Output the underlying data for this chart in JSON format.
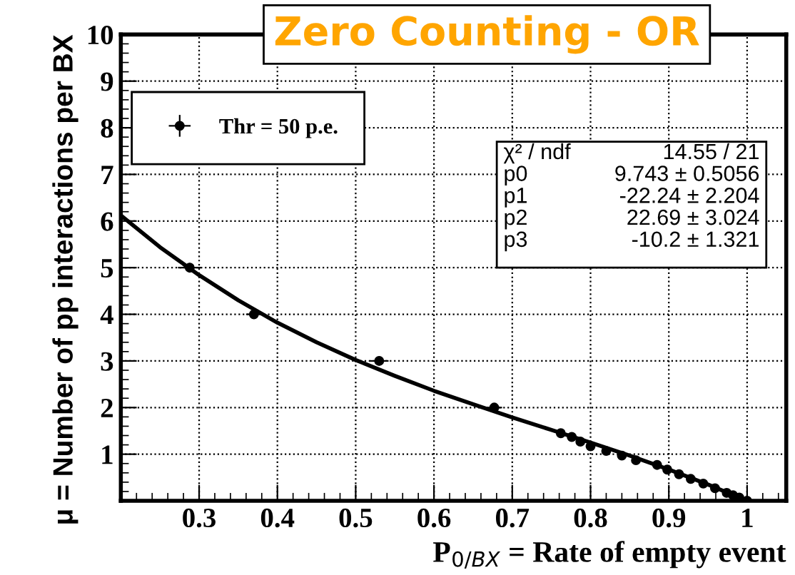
{
  "chart_data": {
    "type": "scatter",
    "title": "Zero Counting - OR",
    "xlabel": "P$_{0/BX}$ = Rate of empty event",
    "ylabel": "μ = Number of pp interactions per BX",
    "series": [
      {
        "name": "Thr = 50 p.e.",
        "color": "#000000",
        "marker": "circle",
        "x": [
          0.288,
          0.37,
          0.53,
          0.677,
          0.762,
          0.776,
          0.787,
          0.8,
          0.82,
          0.84,
          0.858,
          0.885,
          0.898,
          0.913,
          0.928,
          0.944,
          0.959,
          0.974,
          0.982,
          0.99,
          1.0
        ],
        "values": [
          5.0,
          4.0,
          3.0,
          2.0,
          1.45,
          1.37,
          1.27,
          1.17,
          1.07,
          0.97,
          0.87,
          0.77,
          0.67,
          0.57,
          0.47,
          0.37,
          0.27,
          0.17,
          0.12,
          0.07,
          0.0
        ],
        "xerrors": [
          0.015,
          0.01,
          0.012,
          0.01,
          null,
          null,
          null,
          null,
          null,
          null,
          null,
          null,
          null,
          null,
          null,
          null,
          null,
          null,
          null,
          null,
          null
        ],
        "errors": [
          0.1,
          0.1,
          0.1,
          null,
          null,
          null,
          null,
          null,
          null,
          null,
          null,
          null,
          null,
          null,
          null,
          null,
          null,
          null,
          null,
          null,
          null
        ]
      },
      {
        "type": "line",
        "color": "#000000",
        "x": [
          0.2,
          0.25,
          0.3,
          0.35,
          0.4,
          0.45,
          0.5,
          0.55,
          0.6,
          0.65,
          0.7,
          0.75,
          0.8,
          0.85,
          0.9,
          0.95,
          1.0
        ],
        "values": [
          6.12,
          5.44,
          4.84,
          4.3,
          3.82,
          3.4,
          3.02,
          2.68,
          2.36,
          2.07,
          1.79,
          1.52,
          1.25,
          0.97,
          0.67,
          0.35,
          0.0
        ]
      }
    ],
    "xlim": [
      0.2,
      1.05
    ],
    "ylim": [
      0,
      10
    ],
    "xticks": [
      0.3,
      0.4,
      0.5,
      0.6,
      0.7,
      0.8,
      0.9,
      1
    ],
    "yticks": [
      1,
      2,
      3,
      4,
      5,
      6,
      7,
      8,
      9,
      10
    ],
    "grid": true,
    "legend": "top left",
    "annotations": [
      "χ² / ndf",
      "14.55 / 21",
      "p0",
      "9.743 ± 0.5056",
      "p1",
      "-22.24 ± 2.204",
      "p2",
      "22.69 ± 3.024",
      "p3",
      "-10.2 ± 1.321"
    ]
  }
}
